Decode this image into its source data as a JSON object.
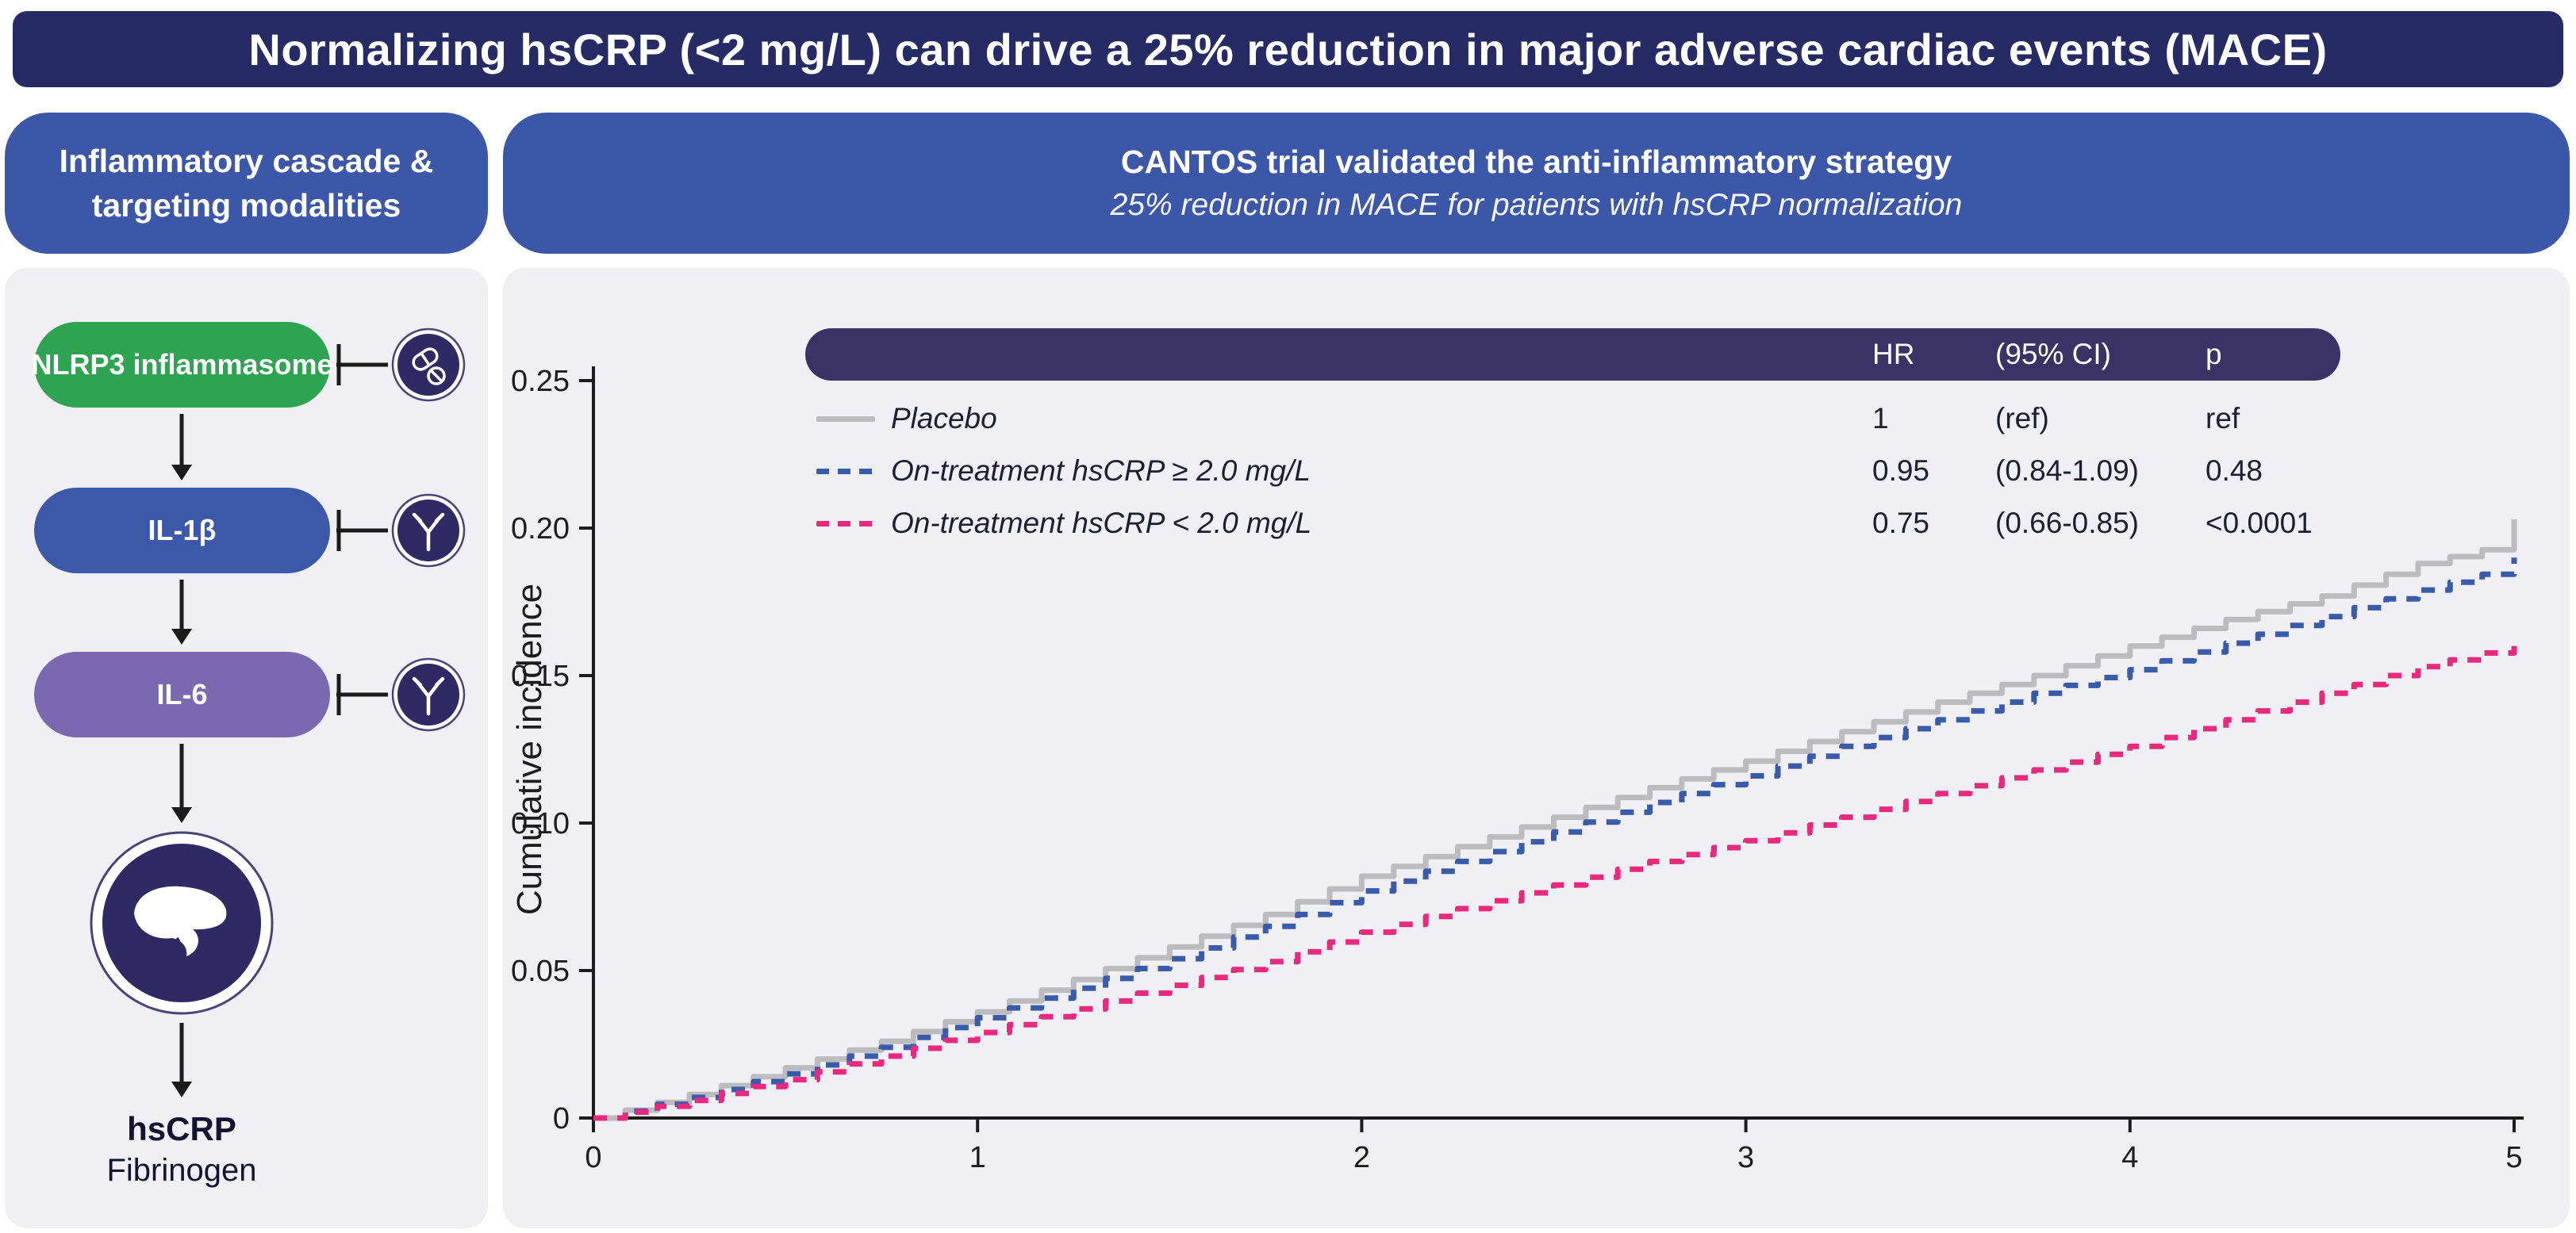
{
  "banner": {
    "title": "Normalizing hsCRP (<2 mg/L) can drive a 25% reduction in major adverse cardiac events (MACE)"
  },
  "left_panel": {
    "header_line1": "Inflammatory cascade &",
    "header_line2": "targeting modalities",
    "cascade": {
      "nodes": [
        {
          "label": "NLRP3 inflammasome",
          "color": "#2ea351",
          "inhibitor_icon": "pills-icon"
        },
        {
          "label": "IL-1β",
          "color": "#3c58a9",
          "inhibitor_icon": "antibody-icon"
        },
        {
          "label": "IL-6",
          "color": "#7a69b0",
          "inhibitor_icon": "antibody-icon"
        }
      ],
      "organ_icon": "liver-icon",
      "output_line1": "hsCRP",
      "output_line2": "Fibrinogen"
    }
  },
  "right_panel": {
    "header_line1": "CANTOS trial validated the anti-inflammatory strategy",
    "header_line2": "25% reduction in MACE for patients with hsCRP normalization",
    "table": {
      "headers": [
        "HR",
        "(95% CI)",
        "p"
      ],
      "rows": [
        {
          "label": "Placebo",
          "swatch": {
            "type": "solid",
            "color": "#bcbcbe"
          },
          "hr": "1",
          "ci": "(ref)",
          "p": "ref"
        },
        {
          "label": "On-treatment hsCRP ≥ 2.0 mg/L",
          "swatch": {
            "type": "dashed",
            "color": "#3a5aaa"
          },
          "hr": "0.95",
          "ci": "(0.84-1.09)",
          "p": "0.48"
        },
        {
          "label": "On-treatment hsCRP < 2.0 mg/L",
          "swatch": {
            "type": "dashed",
            "color": "#e72a7d"
          },
          "hr": "0.75",
          "ci": "(0.66-0.85)",
          "p": "<0.0001"
        }
      ]
    }
  },
  "chart_data": {
    "type": "line",
    "style": "kaplan-meier-step",
    "title": "",
    "xlabel": "",
    "ylabel": "Cumulative incidence",
    "xlim": [
      0,
      5
    ],
    "ylim": [
      0,
      0.25
    ],
    "xticks": [
      0,
      1,
      2,
      3,
      4,
      5
    ],
    "yticks": [
      0,
      0.05,
      0.1,
      0.15,
      0.2,
      0.25
    ],
    "ytick_labels": [
      "0",
      "0.05",
      "0.10",
      "0.15",
      "0.20",
      "0.25"
    ],
    "grid": false,
    "legend_position": "top-left-table",
    "x": [
      0,
      0.25,
      0.5,
      0.75,
      1,
      1.25,
      1.5,
      1.75,
      2,
      2.25,
      2.5,
      2.75,
      3,
      3.25,
      3.5,
      3.75,
      4,
      4.25,
      4.5,
      4.75,
      5
    ],
    "series": [
      {
        "name": "Placebo",
        "color": "#bcbcbe",
        "dash": "solid",
        "final_tick": 0.203,
        "values": [
          0,
          0.008,
          0.017,
          0.026,
          0.036,
          0.047,
          0.058,
          0.069,
          0.082,
          0.092,
          0.102,
          0.112,
          0.121,
          0.131,
          0.141,
          0.15,
          0.16,
          0.169,
          0.177,
          0.188,
          0.195
        ]
      },
      {
        "name": "On-treatment hsCRP ≥ 2.0 mg/L",
        "color": "#3a5aaa",
        "dash": "dashed",
        "final_tick": 0.19,
        "values": [
          0,
          0.007,
          0.015,
          0.024,
          0.034,
          0.044,
          0.054,
          0.065,
          0.077,
          0.087,
          0.097,
          0.107,
          0.116,
          0.126,
          0.135,
          0.144,
          0.152,
          0.161,
          0.17,
          0.179,
          0.187
        ]
      },
      {
        "name": "On-treatment hsCRP < 2.0 mg/L",
        "color": "#e72a7d",
        "dash": "dashed",
        "final_tick": null,
        "values": [
          0,
          0.006,
          0.013,
          0.021,
          0.029,
          0.037,
          0.045,
          0.053,
          0.063,
          0.071,
          0.079,
          0.087,
          0.094,
          0.102,
          0.11,
          0.118,
          0.126,
          0.135,
          0.144,
          0.153,
          0.16
        ]
      }
    ]
  }
}
